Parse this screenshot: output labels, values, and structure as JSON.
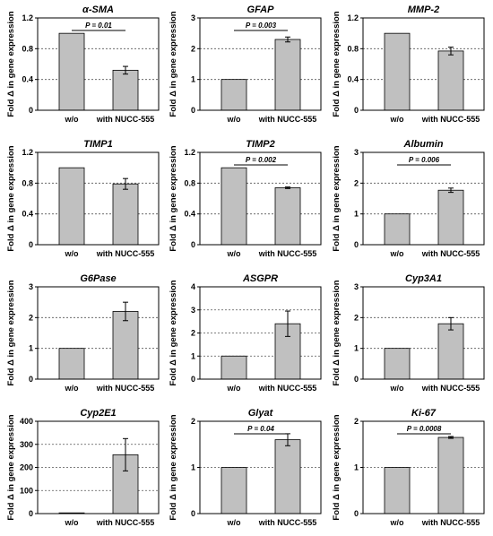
{
  "chart_data": [
    {
      "type": "bar",
      "title": "α-SMA",
      "ylabel": "Fold Δ in gene expression",
      "categories": [
        "w/o",
        "with NUCC-555"
      ],
      "values": [
        1.0,
        0.52
      ],
      "errors": [
        0,
        0.05
      ],
      "ylim": [
        0,
        1.2
      ],
      "yticks": [
        "0",
        "0.4",
        "0.8",
        "1.2"
      ],
      "grid": "dotted",
      "annotation": "P = 0.01"
    },
    {
      "type": "bar",
      "title": "GFAP",
      "ylabel": "Fold Δ in gene expression",
      "categories": [
        "w/o",
        "with NUCC-555"
      ],
      "values": [
        1.0,
        2.3
      ],
      "errors": [
        0,
        0.08
      ],
      "ylim": [
        0,
        3
      ],
      "yticks": [
        "0",
        "1",
        "2",
        "3"
      ],
      "grid": "dotted",
      "annotation": "P = 0.003"
    },
    {
      "type": "bar",
      "title": "MMP-2",
      "ylabel": "Fold Δ in gene expression",
      "categories": [
        "w/o",
        "with NUCC-555"
      ],
      "values": [
        1.0,
        0.77
      ],
      "errors": [
        0,
        0.05
      ],
      "ylim": [
        0,
        1.2
      ],
      "yticks": [
        "0",
        "0.4",
        "0.8",
        "1.2"
      ],
      "grid": "dotted",
      "annotation": ""
    },
    {
      "type": "bar",
      "title": "TIMP1",
      "ylabel": "Fold Δ in gene expression",
      "categories": [
        "w/o",
        "with NUCC-555"
      ],
      "values": [
        1.0,
        0.79
      ],
      "errors": [
        0,
        0.07
      ],
      "ylim": [
        0,
        1.2
      ],
      "yticks": [
        "0",
        "0.4",
        "0.8",
        "1.2"
      ],
      "grid": "dotted",
      "annotation": ""
    },
    {
      "type": "bar",
      "title": "TIMP2",
      "ylabel": "Fold Δ in gene expression",
      "categories": [
        "w/o",
        "with NUCC-555"
      ],
      "values": [
        1.0,
        0.74
      ],
      "errors": [
        0,
        0.01
      ],
      "ylim": [
        0,
        1.2
      ],
      "yticks": [
        "0",
        "0.4",
        "0.8",
        "1.2"
      ],
      "grid": "dotted",
      "annotation": "P = 0.002"
    },
    {
      "type": "bar",
      "title": "Albumin",
      "ylabel": "Fold Δ in gene expression",
      "categories": [
        "w/o",
        "with NUCC-555"
      ],
      "values": [
        1.0,
        1.77
      ],
      "errors": [
        0,
        0.07
      ],
      "ylim": [
        0,
        3
      ],
      "yticks": [
        "0",
        "1",
        "2",
        "3"
      ],
      "grid": "dotted",
      "annotation": "P = 0.006"
    },
    {
      "type": "bar",
      "title": "G6Pase",
      "ylabel": "Fold Δ in gene expression",
      "categories": [
        "w/o",
        "with NUCC-555"
      ],
      "values": [
        1.0,
        2.2
      ],
      "errors": [
        0,
        0.3
      ],
      "ylim": [
        0,
        3
      ],
      "yticks": [
        "0",
        "1",
        "2",
        "3"
      ],
      "grid": "dotted",
      "annotation": ""
    },
    {
      "type": "bar",
      "title": "ASGPR",
      "ylabel": "Fold Δ in gene expression",
      "categories": [
        "w/o",
        "with NUCC-555"
      ],
      "values": [
        1.0,
        2.4
      ],
      "errors": [
        0,
        0.55
      ],
      "ylim": [
        0,
        4
      ],
      "yticks": [
        "0",
        "1",
        "2",
        "3",
        "4"
      ],
      "grid": "dotted",
      "annotation": ""
    },
    {
      "type": "bar",
      "title": "Cyp3A1",
      "ylabel": "Fold Δ in gene expression",
      "categories": [
        "w/o",
        "with NUCC-555"
      ],
      "values": [
        1.0,
        1.8
      ],
      "errors": [
        0,
        0.2
      ],
      "ylim": [
        0,
        3
      ],
      "yticks": [
        "0",
        "1",
        "2",
        "3"
      ],
      "grid": "dotted",
      "annotation": ""
    },
    {
      "type": "bar",
      "title": "Cyp2E1",
      "ylabel": "Fold Δ in gene expression",
      "categories": [
        "w/o",
        "with NUCC-555"
      ],
      "values": [
        1.0,
        255
      ],
      "errors": [
        0,
        70
      ],
      "ylim": [
        0,
        400
      ],
      "yticks": [
        "0",
        "100",
        "200",
        "300",
        "400"
      ],
      "grid": "dotted",
      "annotation": ""
    },
    {
      "type": "bar",
      "title": "Glyat",
      "ylabel": "Fold Δ in gene expression",
      "categories": [
        "w/o",
        "with NUCC-555"
      ],
      "values": [
        1.0,
        1.6
      ],
      "errors": [
        0,
        0.13
      ],
      "ylim": [
        0,
        2
      ],
      "yticks": [
        "0",
        "1",
        "2"
      ],
      "grid": "dotted",
      "annotation": "P = 0.04"
    },
    {
      "type": "bar",
      "title": "Ki-67",
      "ylabel": "Fold Δ in gene expression",
      "categories": [
        "w/o",
        "with NUCC-555"
      ],
      "values": [
        1.0,
        1.65
      ],
      "errors": [
        0,
        0.02
      ],
      "ylim": [
        0,
        2
      ],
      "yticks": [
        "0",
        "1",
        "2"
      ],
      "grid": "dotted",
      "annotation": "P = 0.0008"
    }
  ],
  "colors": {
    "bar": "#c0c0c0",
    "bar_outline": "#000000",
    "grid": "#555555"
  }
}
